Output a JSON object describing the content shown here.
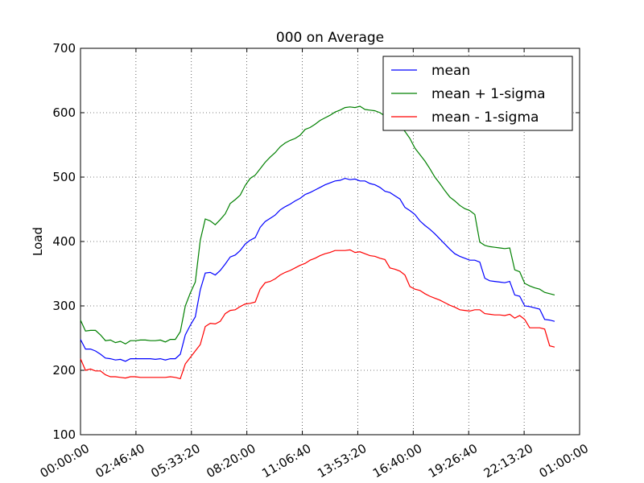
{
  "chart_data": {
    "type": "line",
    "title": "000 on Average",
    "y_label": "Load",
    "x": [
      0,
      900,
      1800,
      2700,
      3600,
      4500,
      5400,
      6300,
      7200,
      8100,
      9000,
      9900,
      10800,
      11700,
      12600,
      13500,
      14400,
      15300,
      16200,
      17100,
      18000,
      18900,
      19800,
      20700,
      21600,
      22500,
      23400,
      24300,
      25200,
      26100,
      27000,
      27900,
      28800,
      29700,
      30600,
      31500,
      32400,
      33300,
      34200,
      35100,
      36000,
      36900,
      37800,
      38700,
      39600,
      40500,
      41400,
      42300,
      43200,
      44100,
      45000,
      45900,
      46800,
      47700,
      48600,
      49500,
      50400,
      51300,
      52200,
      53100,
      54000,
      54900,
      55800,
      56700,
      57600,
      58500,
      59400,
      60300,
      61200,
      62100,
      63000,
      63900,
      64800,
      65700,
      66600,
      67500,
      68400,
      69300,
      70200,
      71100,
      72000,
      72900,
      73800,
      74700,
      75600,
      76500,
      77400,
      78300,
      79200,
      80100,
      81000,
      81900,
      82800,
      83700,
      84600,
      85500
    ],
    "series": [
      {
        "name": "mean",
        "color": "#0000ff",
        "values": [
          248,
          233,
          233,
          230,
          225,
          219,
          218,
          216,
          217,
          214,
          218,
          218,
          218,
          218,
          218,
          217,
          218,
          216,
          218,
          218,
          225,
          255,
          270,
          283,
          325,
          351,
          352,
          348,
          355,
          365,
          376,
          379,
          386,
          396,
          402,
          406,
          422,
          431,
          436,
          441,
          449,
          454,
          458,
          463,
          467,
          473,
          476,
          480,
          484,
          488,
          491,
          494,
          495,
          498,
          496,
          497,
          494,
          494,
          490,
          488,
          484,
          478,
          476,
          471,
          466,
          453,
          448,
          442,
          432,
          425,
          419,
          412,
          404,
          396,
          388,
          381,
          377,
          374,
          371,
          371,
          368,
          343,
          339,
          338,
          337,
          336,
          338,
          317,
          315,
          300,
          299,
          297,
          295,
          279,
          278,
          276
        ]
      },
      {
        "name": "mean + 1-sigma",
        "color": "#008000",
        "values": [
          278,
          261,
          262,
          262,
          255,
          246,
          247,
          243,
          245,
          241,
          246,
          246,
          247,
          247,
          246,
          246,
          247,
          244,
          248,
          248,
          260,
          300,
          320,
          337,
          402,
          435,
          432,
          426,
          434,
          443,
          459,
          465,
          472,
          487,
          498,
          503,
          513,
          523,
          531,
          538,
          547,
          553,
          557,
          560,
          565,
          574,
          577,
          582,
          588,
          592,
          596,
          601,
          604,
          608,
          609,
          608,
          610,
          605,
          604,
          603,
          600,
          595,
          590,
          587,
          580,
          571,
          560,
          545,
          535,
          525,
          513,
          500,
          490,
          479,
          469,
          463,
          456,
          451,
          448,
          442,
          399,
          394,
          392,
          391,
          390,
          389,
          390,
          356,
          353,
          335,
          331,
          328,
          326,
          321,
          319,
          317
        ]
      },
      {
        "name": "mean - 1-sigma",
        "color": "#ff0000",
        "values": [
          218,
          200,
          202,
          199,
          199,
          193,
          190,
          190,
          189,
          188,
          190,
          190,
          189,
          189,
          189,
          189,
          189,
          189,
          190,
          189,
          187,
          210,
          220,
          230,
          240,
          268,
          273,
          272,
          276,
          288,
          293,
          294,
          299,
          303,
          304,
          306,
          326,
          336,
          338,
          342,
          348,
          352,
          355,
          359,
          363,
          366,
          371,
          374,
          378,
          381,
          383,
          386,
          386,
          386,
          387,
          383,
          384,
          381,
          378,
          377,
          374,
          372,
          359,
          357,
          354,
          348,
          330,
          326,
          324,
          319,
          315,
          312,
          309,
          305,
          301,
          298,
          294,
          293,
          292,
          294,
          294,
          288,
          287,
          286,
          286,
          285,
          287,
          281,
          285,
          279,
          266,
          266,
          266,
          264,
          238,
          236
        ]
      }
    ],
    "xlim": [
      0,
      90000
    ],
    "xticks": [
      {
        "value": 0,
        "label": "00:00:00"
      },
      {
        "value": 10000,
        "label": "02:46:40"
      },
      {
        "value": 20000,
        "label": "05:33:20"
      },
      {
        "value": 30000,
        "label": "08:20:00"
      },
      {
        "value": 40000,
        "label": "11:06:40"
      },
      {
        "value": 50000,
        "label": "13:53:20"
      },
      {
        "value": 60000,
        "label": "16:40:00"
      },
      {
        "value": 70000,
        "label": "19:26:40"
      },
      {
        "value": 80000,
        "label": "22:13:20"
      },
      {
        "value": 90000,
        "label": "01:00:00"
      }
    ],
    "ylim": [
      100,
      700
    ],
    "yticks": [
      100,
      200,
      300,
      400,
      500,
      600,
      700
    ],
    "grid": true,
    "legend": "upper right"
  }
}
